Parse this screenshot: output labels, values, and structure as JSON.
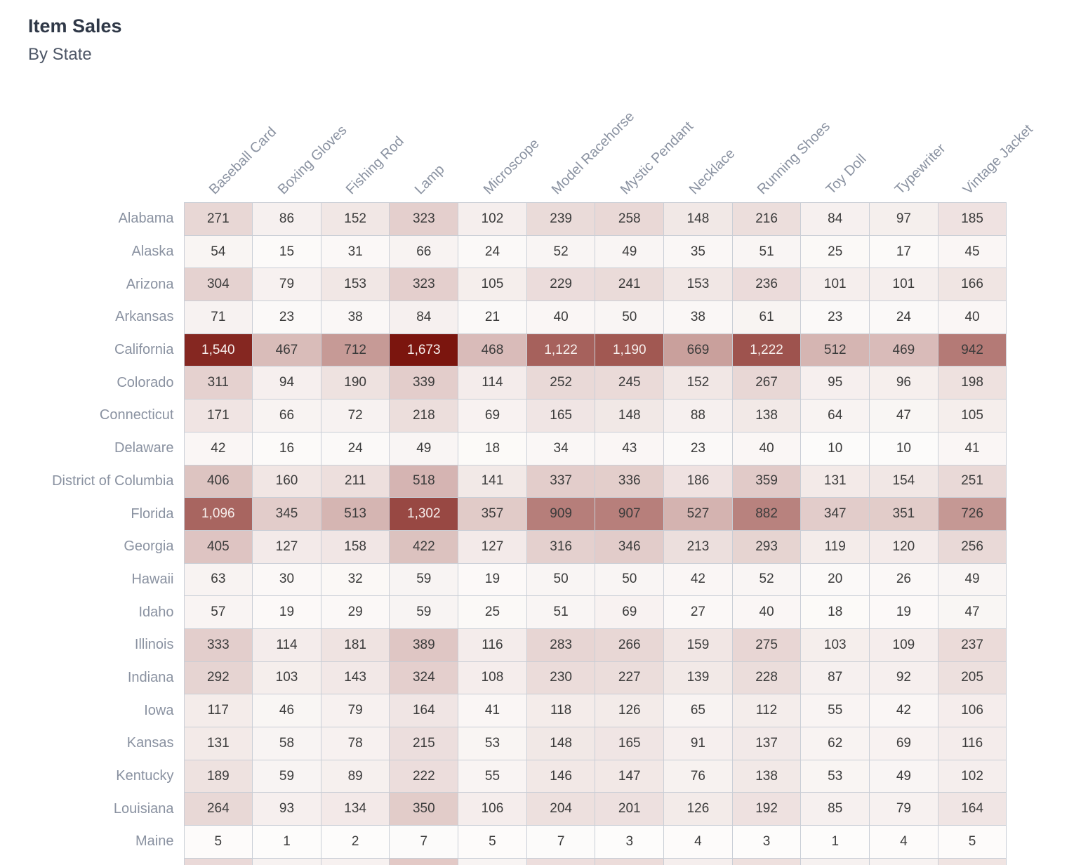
{
  "header": {
    "title": "Item Sales",
    "subtitle": "By State"
  },
  "chart_data": {
    "type": "heatmap",
    "title": "Item Sales",
    "subtitle": "By State",
    "legend_position": "none",
    "grid": true,
    "columns": [
      "Baseball Card",
      "Boxing Gloves",
      "Fishing Rod",
      "Lamp",
      "Microscope",
      "Model Racehorse",
      "Mystic Pendant",
      "Necklace",
      "Running Shoes",
      "Toy Doll",
      "Typewriter",
      "Vintage Jacket"
    ],
    "rows": [
      "Alabama",
      "Alaska",
      "Arizona",
      "Arkansas",
      "California",
      "Colorado",
      "Connecticut",
      "Delaware",
      "District of Columbia",
      "Florida",
      "Georgia",
      "Hawaii",
      "Idaho",
      "Illinois",
      "Indiana",
      "Iowa",
      "Kansas",
      "Kentucky",
      "Louisiana",
      "Maine"
    ],
    "values": [
      [
        271,
        86,
        152,
        323,
        102,
        239,
        258,
        148,
        216,
        84,
        97,
        185
      ],
      [
        54,
        15,
        31,
        66,
        24,
        52,
        49,
        35,
        51,
        25,
        17,
        45
      ],
      [
        304,
        79,
        153,
        323,
        105,
        229,
        241,
        153,
        236,
        101,
        101,
        166
      ],
      [
        71,
        23,
        38,
        84,
        21,
        40,
        50,
        38,
        61,
        23,
        24,
        40
      ],
      [
        1540,
        467,
        712,
        1673,
        468,
        1122,
        1190,
        669,
        1222,
        512,
        469,
        942
      ],
      [
        311,
        94,
        190,
        339,
        114,
        252,
        245,
        152,
        267,
        95,
        96,
        198
      ],
      [
        171,
        66,
        72,
        218,
        69,
        165,
        148,
        88,
        138,
        64,
        47,
        105
      ],
      [
        42,
        16,
        24,
        49,
        18,
        34,
        43,
        23,
        40,
        10,
        10,
        41
      ],
      [
        406,
        160,
        211,
        518,
        141,
        337,
        336,
        186,
        359,
        131,
        154,
        251
      ],
      [
        1096,
        345,
        513,
        1302,
        357,
        909,
        907,
        527,
        882,
        347,
        351,
        726
      ],
      [
        405,
        127,
        158,
        422,
        127,
        316,
        346,
        213,
        293,
        119,
        120,
        256
      ],
      [
        63,
        30,
        32,
        59,
        19,
        50,
        50,
        42,
        52,
        20,
        26,
        49
      ],
      [
        57,
        19,
        29,
        59,
        25,
        51,
        69,
        27,
        40,
        18,
        19,
        47
      ],
      [
        333,
        114,
        181,
        389,
        116,
        283,
        266,
        159,
        275,
        103,
        109,
        237
      ],
      [
        292,
        103,
        143,
        324,
        108,
        230,
        227,
        139,
        228,
        87,
        92,
        205
      ],
      [
        117,
        46,
        79,
        164,
        41,
        118,
        126,
        65,
        112,
        55,
        42,
        106
      ],
      [
        131,
        58,
        78,
        215,
        53,
        148,
        165,
        91,
        137,
        62,
        69,
        116
      ],
      [
        189,
        59,
        89,
        222,
        55,
        146,
        147,
        76,
        138,
        53,
        49,
        102
      ],
      [
        264,
        93,
        134,
        350,
        106,
        204,
        201,
        126,
        192,
        85,
        79,
        164
      ],
      [
        5,
        1,
        2,
        7,
        5,
        7,
        3,
        4,
        3,
        1,
        4,
        5
      ]
    ],
    "color_scale": {
      "min_value": 0,
      "max_value": 1673,
      "low_color": "#FDFCFB",
      "high_color": "#7B150E",
      "white_text_threshold": 0.62,
      "dark_text_color": "#3b3b3b",
      "light_text_color": "#f7efed"
    },
    "partial_next_row_colors": [
      "#ead9d8",
      "#f7f2f1",
      "#f7f1f0",
      "#e3c9c6",
      "#f8f4f3",
      "#eddedd",
      "#ecdcda",
      "#f5eeed",
      "#eee0de",
      "#f6f1f0",
      "#f7f2f1",
      "#f0e4e2"
    ]
  }
}
